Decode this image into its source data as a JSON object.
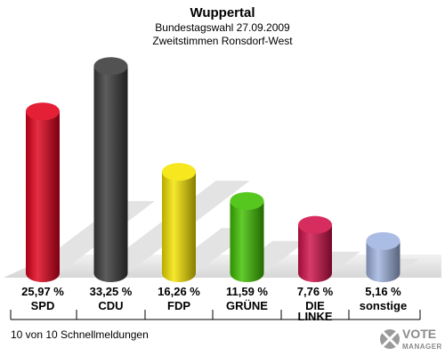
{
  "chart_data": {
    "type": "bar",
    "title": "Wuppertal",
    "subtitle": [
      "Bundestagswahl 27.09.2009",
      "Zweitstimmen Ronsdorf-West"
    ],
    "categories": [
      "SPD",
      "CDU",
      "FDP",
      "GRÜNE",
      "DIE LINKE",
      "sonstige"
    ],
    "category_lines": [
      [
        "SPD"
      ],
      [
        "CDU"
      ],
      [
        "FDP"
      ],
      [
        "GRÜNE"
      ],
      [
        "DIE",
        "LINKE"
      ],
      [
        "sonstige"
      ]
    ],
    "values": [
      25.97,
      33.25,
      16.26,
      11.59,
      7.76,
      5.16
    ],
    "value_labels": [
      "25,97 %",
      "33,25 %",
      "16,26 %",
      "11,59 %",
      "7,76 %",
      "5,16 %"
    ],
    "colors": [
      "#e0001b",
      "#3a3a3a",
      "#f5e400",
      "#3fbf00",
      "#d01048",
      "#a0b4e0"
    ],
    "ylim": [
      0,
      35
    ],
    "grid": false,
    "legend": "none"
  },
  "footer": {
    "status": "10 von 10 Schnellmeldungen"
  },
  "logo": {
    "line1": "VOTE",
    "line2": "MANAGER"
  }
}
